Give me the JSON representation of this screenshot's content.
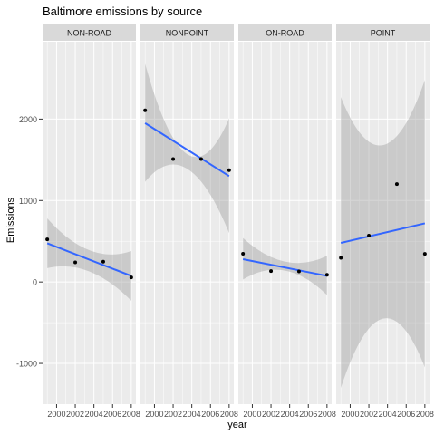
{
  "chart_data": {
    "type": "scatter",
    "title": "Baltimore emissions by source",
    "xlabel": "year",
    "ylabel": "Emissions",
    "xlim": [
      1998.5,
      2008.5
    ],
    "ylim": [
      -1500,
      2950
    ],
    "x_ticks": [
      2000,
      2002,
      2004,
      2006,
      2008
    ],
    "x_tick_labels": [
      "2000",
      "2002",
      "2004",
      "2006",
      "2008"
    ],
    "y_ticks": [
      -1000,
      0,
      1000,
      2000
    ],
    "y_tick_labels": [
      "-1000",
      "0",
      "1000",
      "2000"
    ],
    "grid": true,
    "smooth": "lm",
    "colors": {
      "panel_bg": "#ebebeb",
      "strip_bg": "#d9d9d9",
      "grid": "#ffffff",
      "point": "#000000",
      "fit_line": "#3366ff",
      "ribbon": "#999999"
    },
    "panels": [
      {
        "name": "NON-ROAD",
        "x": [
          1999,
          2002,
          2005,
          2008
        ],
        "y": [
          522.94,
          240.85,
          248.93,
          55.82
        ],
        "fit": {
          "x_start": 1999,
          "y_start": 475,
          "x_end": 2008,
          "y_end": 75
        },
        "band": {
          "lower_start": 170,
          "lower_mid": 130,
          "lower_end": -230,
          "upper_start": 780,
          "upper_mid": 390,
          "upper_end": 380
        }
      },
      {
        "name": "NONPOINT",
        "x": [
          1999,
          2002,
          2005,
          2008
        ],
        "y": [
          2107.63,
          1509.5,
          1509.5,
          1373.21
        ],
        "fit": {
          "x_start": 1999,
          "y_start": 1950,
          "x_end": 2008,
          "y_end": 1300
        },
        "band": {
          "lower_start": 1230,
          "lower_mid": 1390,
          "lower_end": 600,
          "upper_start": 2680,
          "upper_mid": 1570,
          "upper_end": 2010
        }
      },
      {
        "name": "ON-ROAD",
        "x": [
          1999,
          2002,
          2005,
          2008
        ],
        "y": [
          346.82,
          134.31,
          130.43,
          88.28
        ],
        "fit": {
          "x_start": 1999,
          "y_start": 280,
          "x_end": 2008,
          "y_end": 75
        },
        "band": {
          "lower_start": 30,
          "lower_mid": 140,
          "lower_end": -160,
          "upper_start": 540,
          "upper_mid": 250,
          "upper_end": 320
        }
      },
      {
        "name": "POINT",
        "x": [
          1999,
          2002,
          2005,
          2008
        ],
        "y": [
          296.8,
          569.26,
          1202.49,
          344.98
        ],
        "fit": {
          "x_start": 1999,
          "y_start": 480,
          "x_end": 2008,
          "y_end": 720
        },
        "band": {
          "lower_start": -1300,
          "lower_mid": -450,
          "lower_end": -1050,
          "upper_start": 2270,
          "upper_mid": 1680,
          "upper_end": 2480
        }
      }
    ]
  }
}
